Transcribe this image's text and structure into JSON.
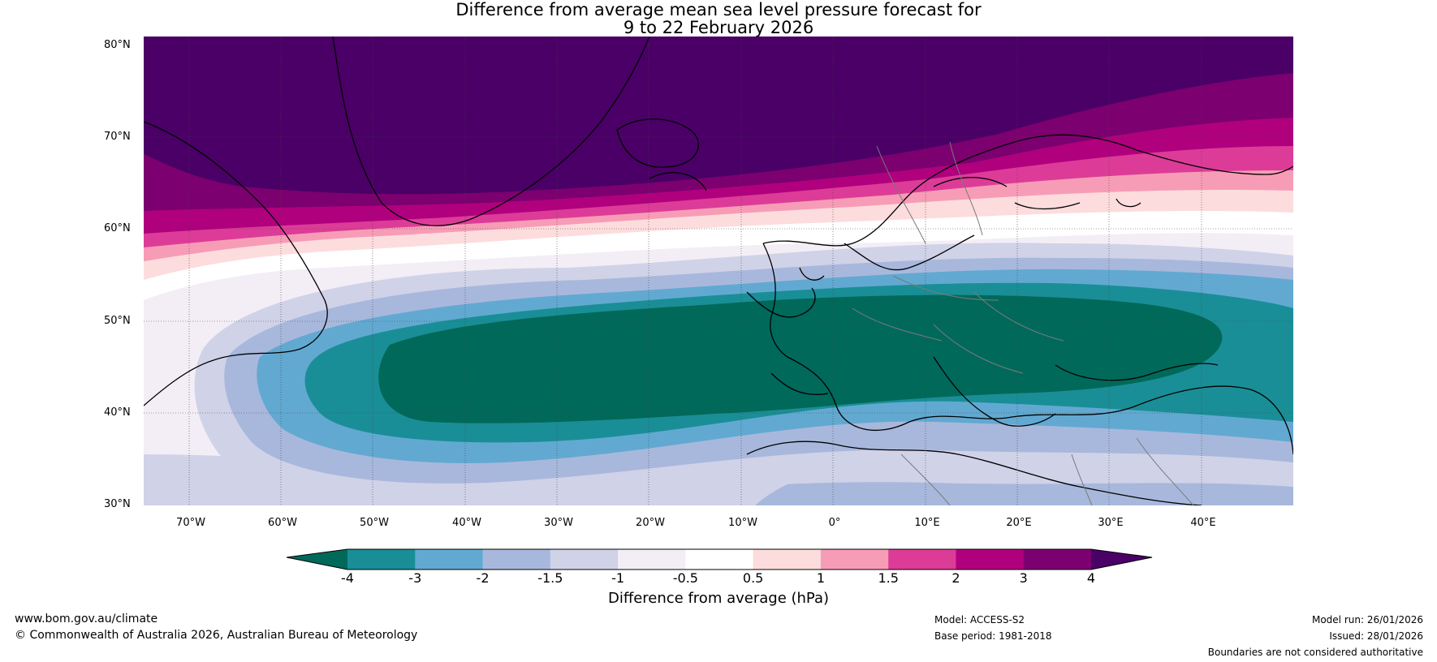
{
  "title": {
    "line1": "Difference from average mean sea level pressure forecast for",
    "line2": "9 to 22 February 2026"
  },
  "map": {
    "lat_labels": [
      "80°N",
      "70°N",
      "60°N",
      "50°N",
      "40°N",
      "30°N"
    ],
    "lon_labels": [
      "70°W",
      "60°W",
      "50°W",
      "40°W",
      "30°W",
      "20°W",
      "10°W",
      "0°",
      "10°E",
      "20°E",
      "30°E",
      "40°E"
    ],
    "lat_range": [
      30,
      80
    ],
    "lon_range": [
      -75,
      50
    ]
  },
  "colorbar": {
    "ticks": [
      "-4",
      "-3",
      "-2",
      "-1.5",
      "-1",
      "-0.5",
      "0.5",
      "1",
      "1.5",
      "2",
      "3",
      "4"
    ],
    "colors": {
      "below_min": "#00695a",
      "bins": [
        "#1a8e96",
        "#62a9d1",
        "#a8b8dc",
        "#d0d2e8",
        "#f3eef5",
        "#ffffff",
        "#fddcdd",
        "#f79cb6",
        "#dc3c97",
        "#b0007e",
        "#7c006f"
      ],
      "above_max": "#4a0066"
    },
    "label": "Difference from average (hPa)"
  },
  "footer": {
    "website": "www.bom.gov.au/climate",
    "copyright": "© Commonwealth of Australia 2026, Australian Bureau of Meteorology",
    "model": "Model: ACCESS-S2",
    "base_period": "Base period: 1981-2018",
    "model_run": "Model run: 26/01/2026",
    "issued": "Issued: 28/01/2026",
    "disclaimer": "Boundaries are not considered authoritative"
  }
}
